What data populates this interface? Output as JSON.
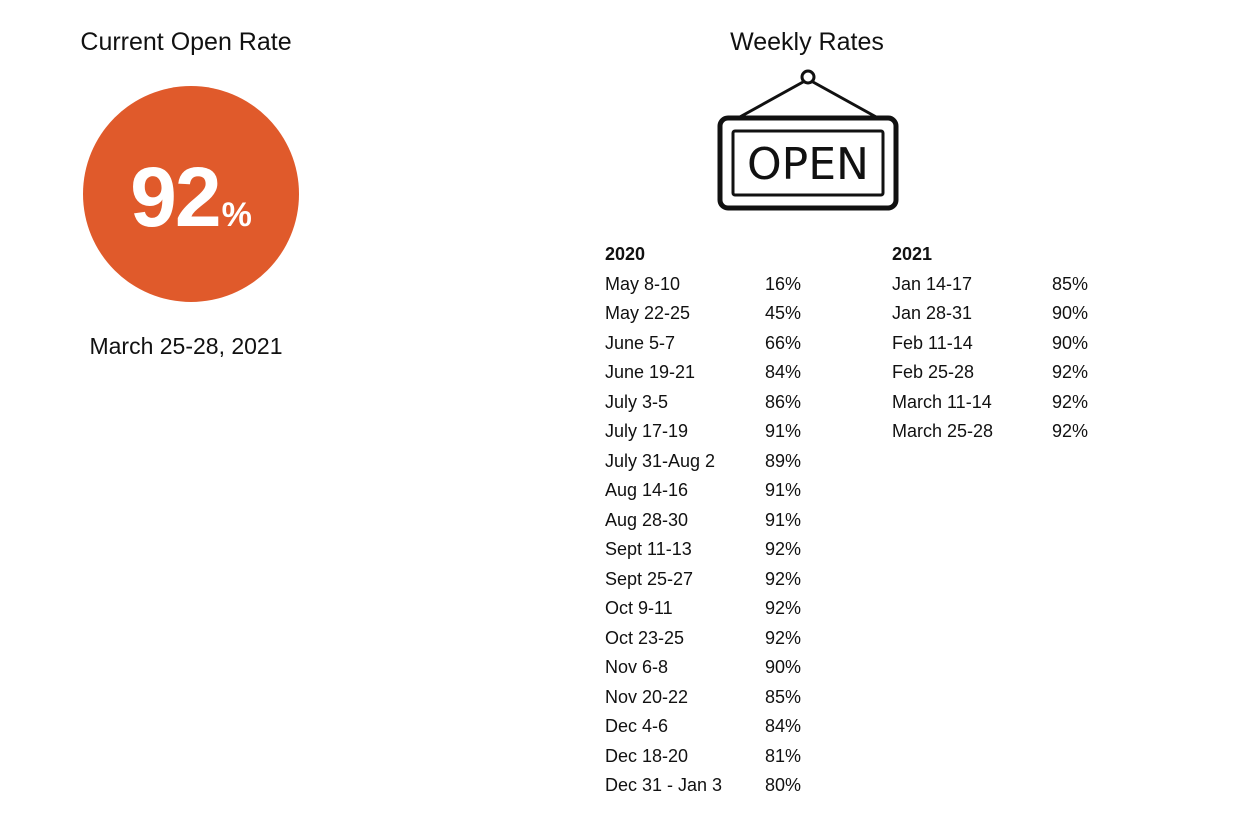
{
  "current": {
    "title": "Current Open Rate",
    "value": "92",
    "unit": "%",
    "date": "March 25-28, 2021",
    "circle_color": "#e05a2b"
  },
  "weekly": {
    "title": "Weekly Rates",
    "sign_text": "OPEN",
    "sign_icon": "open-sign-icon",
    "years": [
      {
        "year": "2020",
        "rows": [
          {
            "period": "May 8-10",
            "rate": "16%"
          },
          {
            "period": "May 22-25",
            "rate": "45%"
          },
          {
            "period": "June 5-7",
            "rate": "66%"
          },
          {
            "period": "June 19-21",
            "rate": "84%"
          },
          {
            "period": "July 3-5",
            "rate": "86%"
          },
          {
            "period": "July 17-19",
            "rate": "91%"
          },
          {
            "period": "July 31-Aug 2",
            "rate": "89%"
          },
          {
            "period": "Aug 14-16",
            "rate": "91%"
          },
          {
            "period": "Aug 28-30",
            "rate": "91%"
          },
          {
            "period": "Sept 11-13",
            "rate": "92%"
          },
          {
            "period": "Sept 25-27",
            "rate": "92%"
          },
          {
            "period": "Oct 9-11",
            "rate": "92%"
          },
          {
            "period": "Oct 23-25",
            "rate": "92%"
          },
          {
            "period": "Nov 6-8",
            "rate": "90%"
          },
          {
            "period": "Nov 20-22",
            "rate": "85%"
          },
          {
            "period": "Dec 4-6",
            "rate": "84%"
          },
          {
            "period": "Dec 18-20",
            "rate": "81%"
          },
          {
            "period": "Dec 31 - Jan 3",
            "rate": "80%"
          }
        ]
      },
      {
        "year": "2021",
        "rows": [
          {
            "period": "Jan 14-17",
            "rate": "85%"
          },
          {
            "period": "Jan 28-31",
            "rate": "90%"
          },
          {
            "period": "Feb 11-14",
            "rate": "90%"
          },
          {
            "period": "Feb 25-28",
            "rate": "92%"
          },
          {
            "period": "March 11-14",
            "rate": "92%"
          },
          {
            "period": "March 25-28",
            "rate": "92%"
          }
        ]
      }
    ]
  }
}
